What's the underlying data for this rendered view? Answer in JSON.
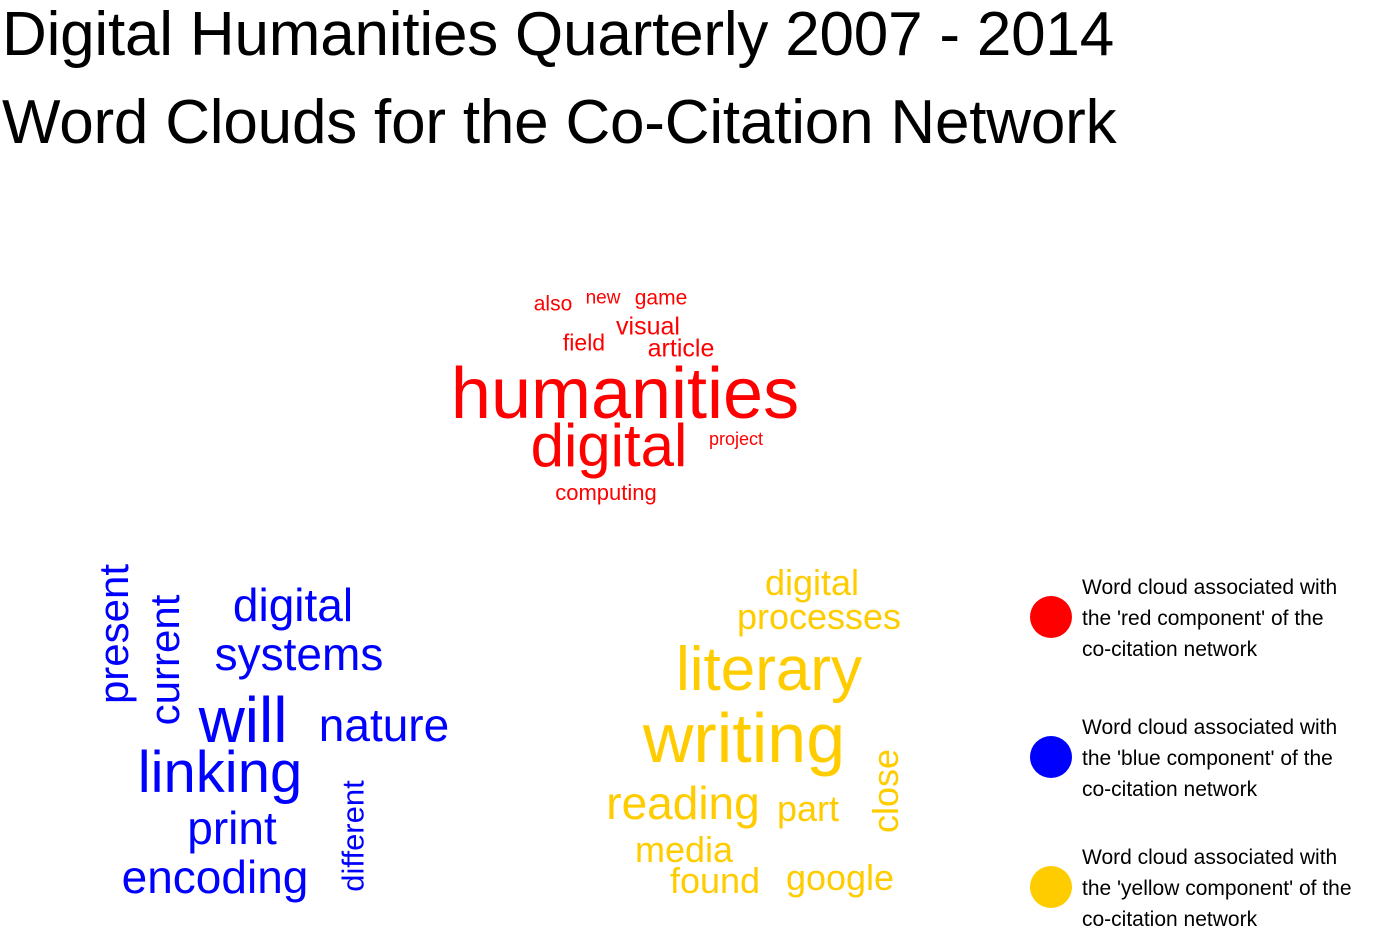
{
  "title": {
    "line1": "Digital Humanities Quarterly 2007 - 2014",
    "line2": "Word Clouds for the Co-Citation Network"
  },
  "clouds": {
    "red": {
      "color": "#ff0000",
      "words": [
        "also",
        "new",
        "game",
        "visual",
        "field",
        "article",
        "humanities",
        "digital",
        "project",
        "computing"
      ]
    },
    "blue": {
      "color": "#0000ff",
      "words": [
        "present",
        "current",
        "digital",
        "systems",
        "will",
        "nature",
        "linking",
        "print",
        "different",
        "encoding"
      ]
    },
    "yellow": {
      "color": "#ffcc00",
      "words": [
        "digital",
        "processes",
        "literary",
        "writing",
        "close",
        "reading",
        "part",
        "media",
        "found",
        "google"
      ]
    }
  },
  "legend": [
    {
      "color": "#ff0000",
      "lines": [
        "Word cloud associated with",
        "the 'red component' of the",
        "co-citation network"
      ]
    },
    {
      "color": "#0000ff",
      "lines": [
        "Word cloud associated with",
        "the 'blue component' of the",
        "co-citation network"
      ]
    },
    {
      "color": "#ffcc00",
      "lines": [
        "Word cloud associated with",
        "the 'yellow component' of the",
        "co-citation network"
      ]
    }
  ]
}
